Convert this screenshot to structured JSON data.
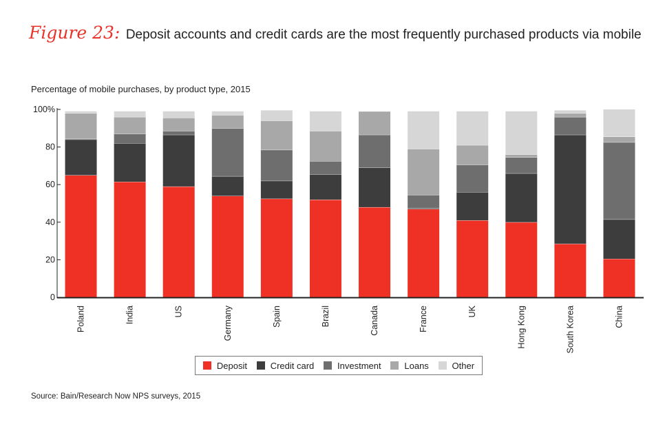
{
  "figure": {
    "label": "Figure 23:",
    "title": "Deposit accounts and credit cards are the most frequently purchased products via mobile"
  },
  "subtitle": "Percentage of mobile purchases, by product type, 2015",
  "source": "Source: Bain/Research Now NPS surveys, 2015",
  "colors": {
    "Deposit": "#ee3124",
    "Credit card": "#3d3d3d",
    "Investment": "#6e6e6e",
    "Loans": "#a8a8a8",
    "Other": "#d6d6d6"
  },
  "chart_data": {
    "type": "bar",
    "stacked": true,
    "categories": [
      "Poland",
      "India",
      "US",
      "Germany",
      "Spain",
      "Brazil",
      "Canada",
      "France",
      "UK",
      "Hong Kong",
      "South Korea",
      "China"
    ],
    "series": [
      {
        "name": "Deposit",
        "values": [
          65,
          61.5,
          59,
          54,
          52.5,
          52,
          48,
          47,
          41,
          40,
          28.5,
          20.5
        ]
      },
      {
        "name": "Credit card",
        "values": [
          19,
          20.5,
          27.5,
          10.5,
          9.5,
          13.5,
          21,
          0.5,
          15,
          26,
          58,
          21
        ]
      },
      {
        "name": "Investment",
        "values": [
          0.5,
          5,
          2,
          25.5,
          16.5,
          7,
          17.5,
          7,
          14.5,
          8.5,
          9.5,
          41
        ]
      },
      {
        "name": "Loans",
        "values": [
          13.5,
          9,
          7,
          7,
          15.5,
          16,
          12.5,
          24.5,
          10.5,
          1.5,
          2,
          3
        ]
      },
      {
        "name": "Other",
        "values": [
          1,
          3,
          3.5,
          2,
          5.5,
          10.5,
          0,
          20,
          18,
          23,
          1.5,
          14.5
        ]
      }
    ],
    "ylim": [
      0,
      100
    ],
    "yticks": [
      "0",
      "20",
      "40",
      "60",
      "80",
      "100%"
    ],
    "legend_position": "bottom-center",
    "grid": false
  }
}
